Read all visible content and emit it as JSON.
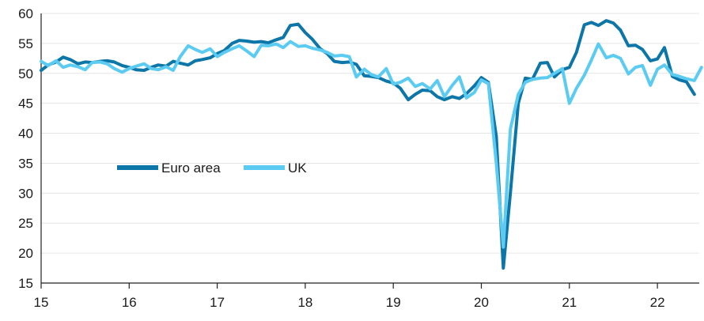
{
  "chart_data": {
    "type": "line",
    "title": "",
    "xlabel": "",
    "ylabel": "",
    "ylim": [
      15,
      60
    ],
    "yticks": [
      15,
      20,
      25,
      30,
      35,
      40,
      45,
      50,
      55,
      60
    ],
    "xlim": [
      15,
      22.55
    ],
    "xticks": [
      15,
      16,
      17,
      18,
      19,
      20,
      21,
      22
    ],
    "grid": "horizontal",
    "legend_position": "middle-left",
    "series": [
      {
        "name": "Euro area",
        "color": "#0c76a8",
        "x": [
          15.0,
          15.08,
          15.17,
          15.25,
          15.33,
          15.42,
          15.5,
          15.58,
          15.67,
          15.75,
          15.83,
          15.92,
          16.0,
          16.08,
          16.17,
          16.25,
          16.33,
          16.42,
          16.5,
          16.58,
          16.67,
          16.75,
          16.83,
          16.92,
          17.0,
          17.08,
          17.17,
          17.25,
          17.33,
          17.42,
          17.5,
          17.58,
          17.67,
          17.75,
          17.83,
          17.92,
          18.0,
          18.08,
          18.17,
          18.25,
          18.33,
          18.42,
          18.5,
          18.58,
          18.67,
          18.75,
          18.83,
          18.92,
          19.0,
          19.08,
          19.17,
          19.25,
          19.33,
          19.42,
          19.5,
          19.58,
          19.67,
          19.75,
          19.83,
          19.92,
          20.0,
          20.08,
          20.17,
          20.25,
          20.33,
          20.42,
          20.5,
          20.58,
          20.67,
          20.75,
          20.83,
          20.92,
          21.0,
          21.08,
          21.17,
          21.25,
          21.33,
          21.42,
          21.5,
          21.58,
          21.67,
          21.75,
          21.83,
          21.92,
          22.0,
          22.08,
          22.17,
          22.25,
          22.33,
          22.42
        ],
        "values": [
          50.5,
          51.4,
          51.9,
          52.7,
          52.3,
          51.6,
          51.9,
          51.8,
          52.0,
          52.1,
          51.9,
          51.3,
          51.0,
          50.6,
          50.5,
          51.0,
          51.4,
          51.2,
          52.0,
          51.7,
          51.4,
          52.1,
          52.3,
          52.6,
          53.3,
          53.8,
          55.0,
          55.5,
          55.4,
          55.2,
          55.3,
          55.1,
          55.6,
          56.0,
          58.0,
          58.2,
          56.8,
          55.7,
          54.1,
          53.3,
          52.0,
          51.8,
          51.9,
          51.5,
          49.6,
          49.5,
          49.3,
          48.7,
          48.4,
          47.5,
          45.6,
          46.5,
          47.2,
          47.1,
          46.1,
          45.6,
          46.1,
          45.8,
          46.6,
          47.9,
          49.3,
          48.5,
          39.5,
          17.5,
          30.0,
          45.0,
          49.2,
          49.0,
          51.7,
          51.8,
          49.4,
          50.6,
          51.0,
          53.5,
          58.1,
          58.5,
          58.0,
          58.8,
          58.4,
          57.2,
          54.6,
          54.7,
          54.0,
          52.1,
          52.4,
          54.3,
          49.5,
          48.9,
          48.6,
          46.5
        ]
      },
      {
        "name": "UK",
        "color": "#5ccbf2",
        "x": [
          15.0,
          15.08,
          15.17,
          15.25,
          15.33,
          15.42,
          15.5,
          15.58,
          15.67,
          15.75,
          15.83,
          15.92,
          16.0,
          16.08,
          16.17,
          16.25,
          16.33,
          16.42,
          16.5,
          16.58,
          16.67,
          16.75,
          16.83,
          16.92,
          17.0,
          17.08,
          17.17,
          17.25,
          17.33,
          17.42,
          17.5,
          17.58,
          17.67,
          17.75,
          17.83,
          17.92,
          18.0,
          18.08,
          18.17,
          18.25,
          18.33,
          18.42,
          18.5,
          18.58,
          18.67,
          18.75,
          18.83,
          18.92,
          19.0,
          19.08,
          19.17,
          19.25,
          19.33,
          19.42,
          19.5,
          19.58,
          19.67,
          19.75,
          19.83,
          19.92,
          20.0,
          20.08,
          20.17,
          20.25,
          20.33,
          20.42,
          20.5,
          20.58,
          20.67,
          20.75,
          20.83,
          20.92,
          21.0,
          21.08,
          21.17,
          21.25,
          21.33,
          21.42,
          21.5,
          21.58,
          21.67,
          21.75,
          21.83,
          21.92,
          22.0,
          22.08,
          22.17,
          22.25,
          22.33,
          22.42,
          22.5
        ],
        "values": [
          52.0,
          51.3,
          52.1,
          51.0,
          51.4,
          51.1,
          50.6,
          51.8,
          51.9,
          51.6,
          50.8,
          50.2,
          50.8,
          51.2,
          51.6,
          50.8,
          50.6,
          51.1,
          50.5,
          52.8,
          54.6,
          54.0,
          53.5,
          54.1,
          52.8,
          53.5,
          54.1,
          54.6,
          53.8,
          52.8,
          54.7,
          54.6,
          54.9,
          54.3,
          55.3,
          54.5,
          54.6,
          54.2,
          53.9,
          53.5,
          52.9,
          53.0,
          52.8,
          49.4,
          50.7,
          49.8,
          49.4,
          50.8,
          48.2,
          48.5,
          49.2,
          47.8,
          48.3,
          47.4,
          48.8,
          46.1,
          48.0,
          49.4,
          45.9,
          46.8,
          48.9,
          48.3,
          35.0,
          21.0,
          40.7,
          46.5,
          48.5,
          49.0,
          49.2,
          49.3,
          50.0,
          50.8,
          45.0,
          47.5,
          49.7,
          52.2,
          54.9,
          52.6,
          53.0,
          52.5,
          49.9,
          51.0,
          51.3,
          48.0,
          50.7,
          51.4,
          49.8,
          49.5,
          49.1,
          48.8,
          51.0
        ]
      }
    ]
  }
}
